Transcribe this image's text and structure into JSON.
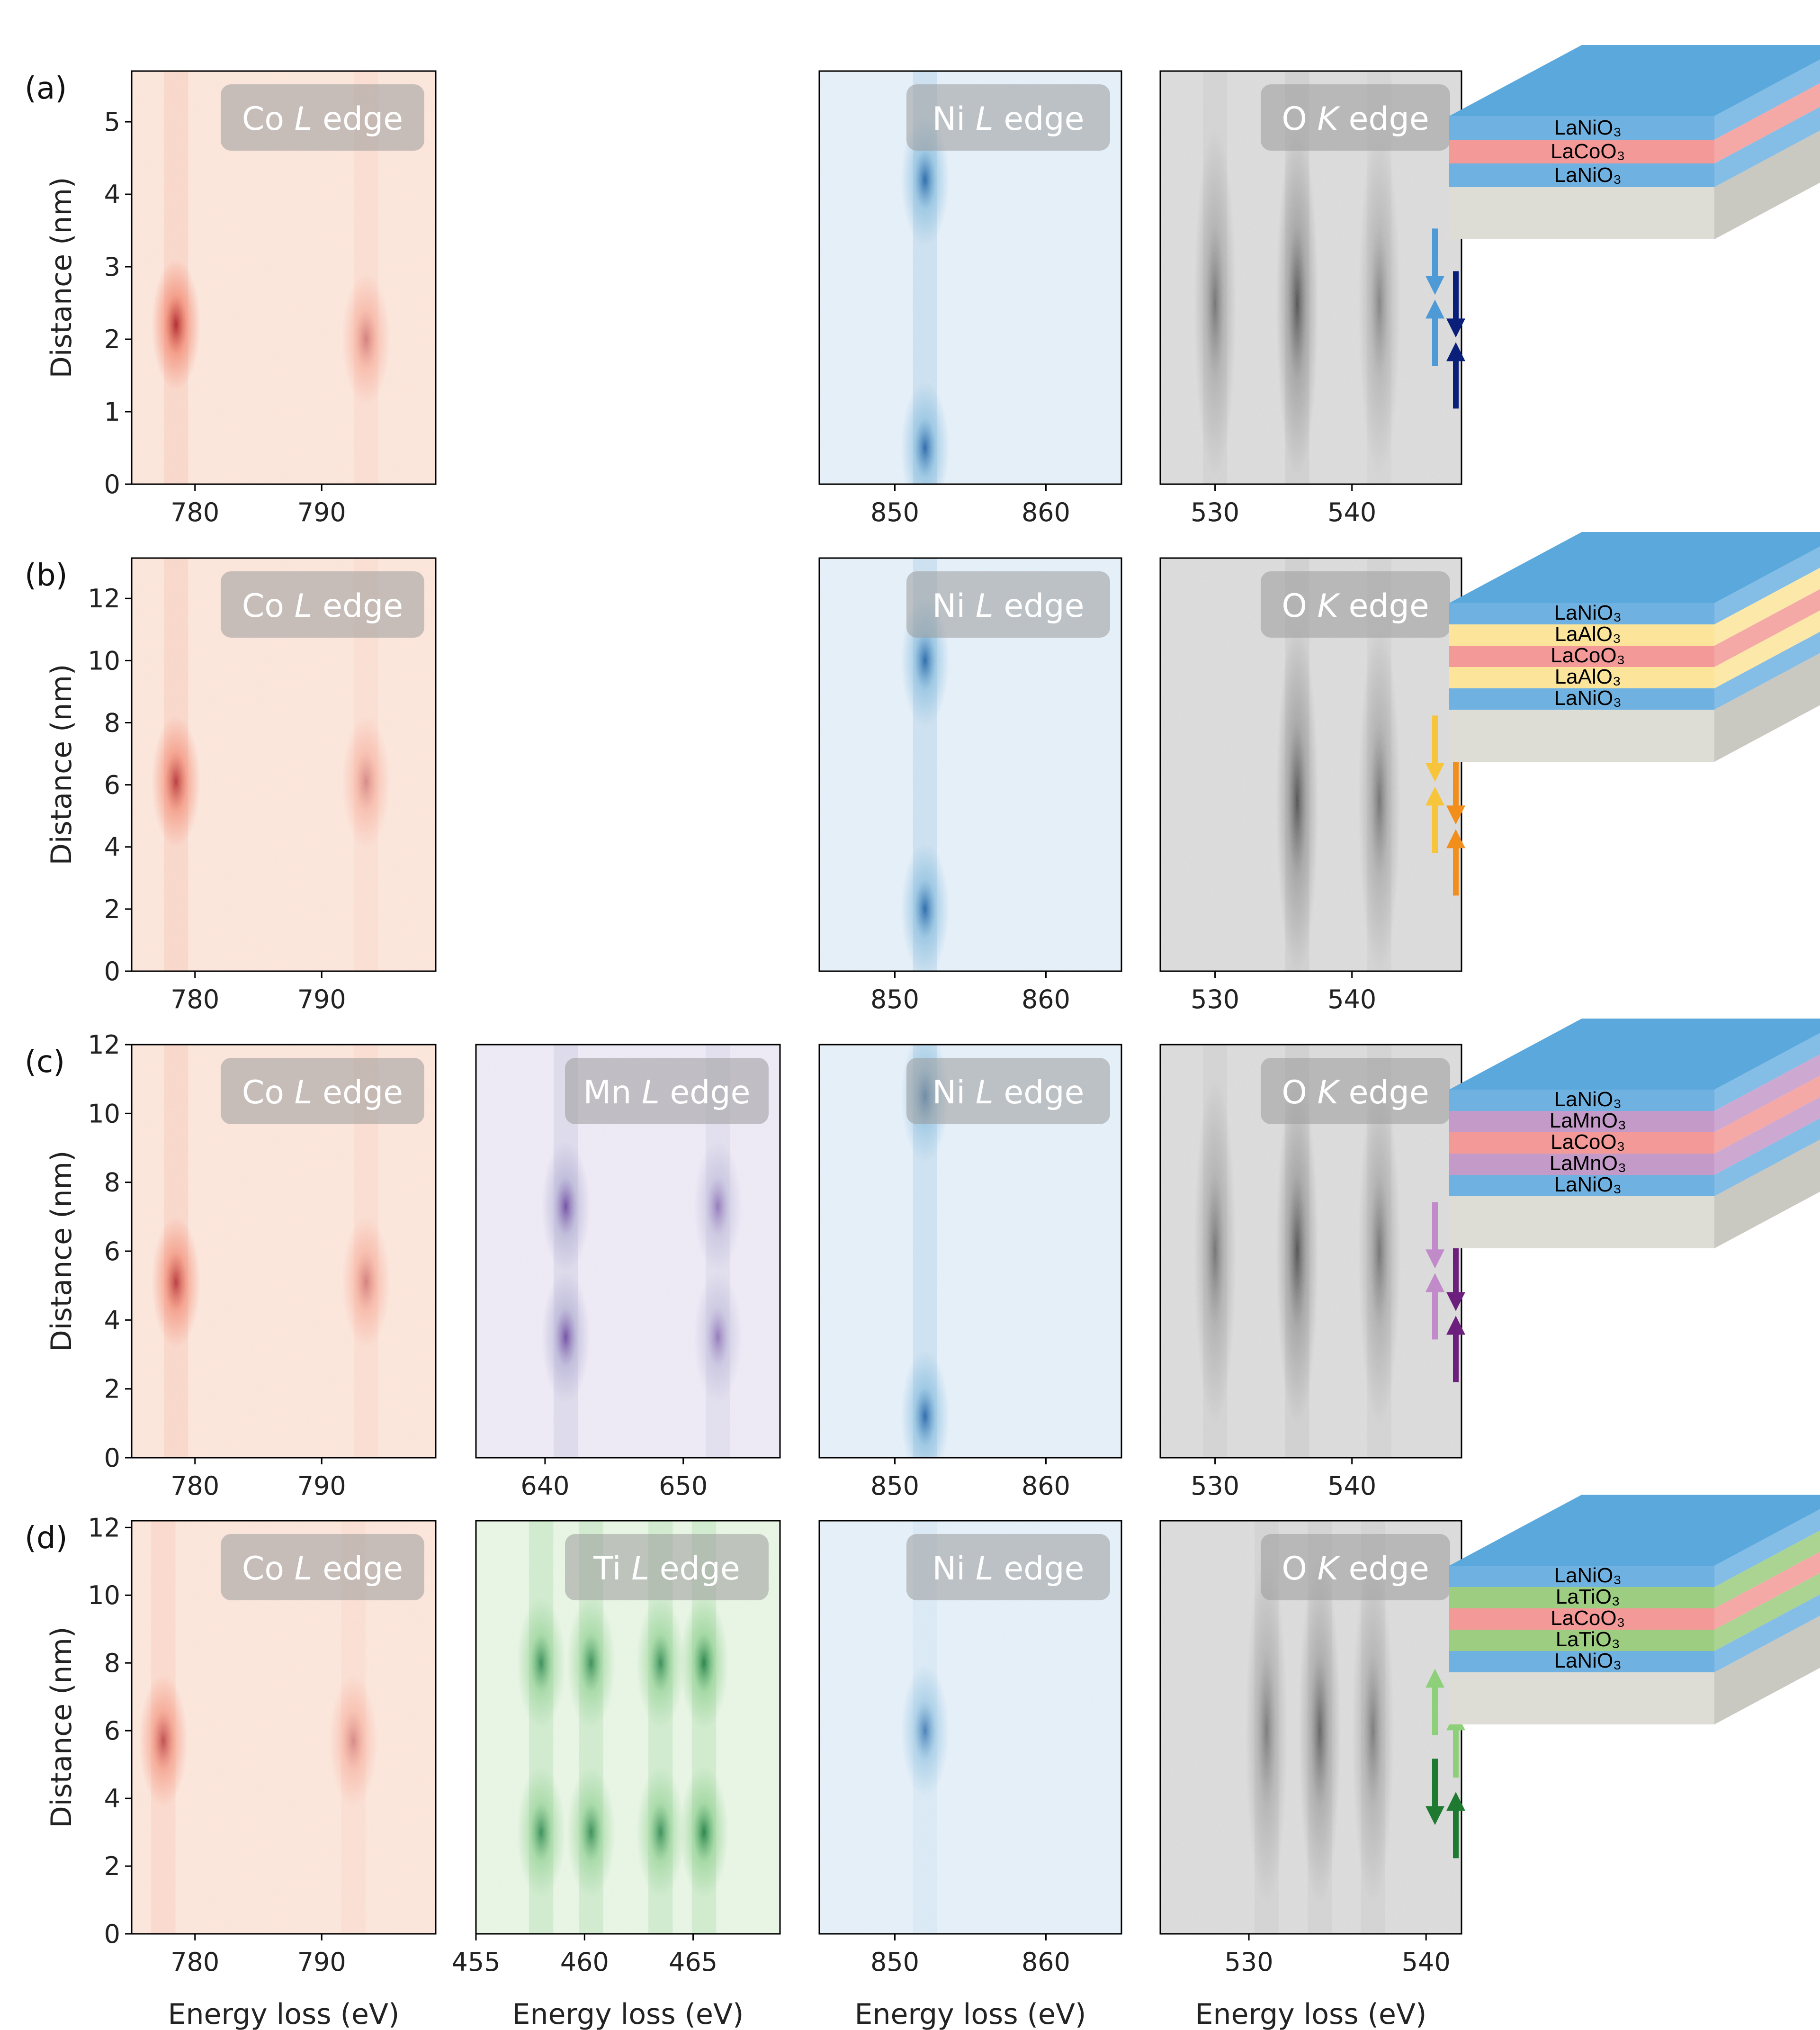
{
  "chart_data": [
    {
      "type": "heatmap",
      "panel": "(a)",
      "ylabel": "Distance (nm)",
      "maps": [
        {
          "edge_element": "Co",
          "edge_shell": "L",
          "edge_word": "edge",
          "xlim": [
            775,
            799
          ],
          "xticks": [
            "780",
            "790"
          ],
          "ylim": [
            0,
            5.7
          ],
          "yticks": [
            "0",
            "1",
            "2",
            "3",
            "4",
            "5"
          ],
          "colormap": "Reds",
          "features": [
            {
              "energy": 778.5,
              "distance": 2.2,
              "intensity": 0.95
            },
            {
              "energy": 793.5,
              "distance": 2.0,
              "intensity": 0.5
            }
          ]
        },
        {
          "edge_element": "Ni",
          "edge_shell": "L",
          "edge_word": "edge",
          "xlim": [
            845,
            865
          ],
          "xticks": [
            "850",
            "860"
          ],
          "ylim": [
            0,
            5.7
          ],
          "colormap": "Blues",
          "features": [
            {
              "energy": 852,
              "distance": 0.5,
              "intensity": 0.9
            },
            {
              "energy": 852,
              "distance": 4.2,
              "intensity": 0.9
            }
          ]
        },
        {
          "edge_element": "O",
          "edge_shell": "K",
          "edge_word": "edge",
          "xlim": [
            526,
            548
          ],
          "xticks": [
            "530",
            "540"
          ],
          "ylim": [
            0,
            5.7
          ],
          "colormap": "Greys",
          "features": [
            {
              "energy": 530,
              "distance": 2.5,
              "intensity": 0.6
            },
            {
              "energy": 536,
              "distance": 2.5,
              "intensity": 0.8
            },
            {
              "energy": 542,
              "distance": 2.5,
              "intensity": 0.5
            }
          ]
        }
      ],
      "stack_layers": [
        "LaNiO₃",
        "LaCoO₃",
        "LaNiO₃"
      ]
    },
    {
      "type": "heatmap",
      "panel": "(b)",
      "ylabel": "Distance (nm)",
      "maps": [
        {
          "edge_element": "Co",
          "edge_shell": "L",
          "edge_word": "edge",
          "xlim": [
            775,
            799
          ],
          "xticks": [
            "780",
            "790"
          ],
          "ylim": [
            0,
            13.3
          ],
          "yticks": [
            "0",
            "2",
            "4",
            "6",
            "8",
            "10",
            "12"
          ],
          "colormap": "Reds",
          "features": [
            {
              "energy": 778.5,
              "distance": 6.1,
              "intensity": 0.85
            },
            {
              "energy": 793.5,
              "distance": 6.1,
              "intensity": 0.45
            }
          ]
        },
        {
          "edge_element": "Ni",
          "edge_shell": "L",
          "edge_word": "edge",
          "xlim": [
            845,
            865
          ],
          "xticks": [
            "850",
            "860"
          ],
          "ylim": [
            0,
            13.3
          ],
          "colormap": "Blues",
          "features": [
            {
              "energy": 852,
              "distance": 2.0,
              "intensity": 0.9
            },
            {
              "energy": 852,
              "distance": 10.0,
              "intensity": 0.9
            }
          ]
        },
        {
          "edge_element": "O",
          "edge_shell": "K",
          "edge_word": "edge",
          "xlim": [
            526,
            548
          ],
          "xticks": [
            "530",
            "540"
          ],
          "ylim": [
            0,
            13.3
          ],
          "colormap": "Greys",
          "features": [
            {
              "energy": 536,
              "distance": 5.5,
              "intensity": 0.8
            },
            {
              "energy": 542,
              "distance": 5.5,
              "intensity": 0.6
            }
          ]
        }
      ],
      "stack_layers": [
        "LaNiO₃",
        "LaAlO₃",
        "LaCoO₃",
        "LaAlO₃",
        "LaNiO₃"
      ]
    },
    {
      "type": "heatmap",
      "panel": "(c)",
      "ylabel": "Distance (nm)",
      "maps": [
        {
          "edge_element": "Co",
          "edge_shell": "L",
          "edge_word": "edge",
          "xlim": [
            775,
            799
          ],
          "xticks": [
            "780",
            "790"
          ],
          "ylim": [
            0,
            12
          ],
          "yticks": [
            "0",
            "2",
            "4",
            "6",
            "8",
            "10",
            "12"
          ],
          "colormap": "Reds",
          "features": [
            {
              "energy": 778.5,
              "distance": 5.1,
              "intensity": 0.85
            },
            {
              "energy": 793.5,
              "distance": 5.1,
              "intensity": 0.5
            }
          ]
        },
        {
          "edge_element": "Mn",
          "edge_shell": "L",
          "edge_word": "edge",
          "xlim": [
            635,
            657
          ],
          "xticks": [
            "640",
            "650"
          ],
          "ylim": [
            0,
            12
          ],
          "colormap": "Purples",
          "features": [
            {
              "energy": 641.5,
              "distance": 7.3,
              "intensity": 0.85
            },
            {
              "energy": 652.5,
              "distance": 7.3,
              "intensity": 0.6
            },
            {
              "energy": 641.5,
              "distance": 3.5,
              "intensity": 0.85
            },
            {
              "energy": 652.5,
              "distance": 3.5,
              "intensity": 0.6
            }
          ]
        },
        {
          "edge_element": "Ni",
          "edge_shell": "L",
          "edge_word": "edge",
          "xlim": [
            845,
            865
          ],
          "xticks": [
            "850",
            "860"
          ],
          "ylim": [
            0,
            12
          ],
          "colormap": "Blues",
          "features": [
            {
              "energy": 852,
              "distance": 1.2,
              "intensity": 0.9
            },
            {
              "energy": 852,
              "distance": 10.5,
              "intensity": 0.8
            }
          ]
        },
        {
          "edge_element": "O",
          "edge_shell": "K",
          "edge_word": "edge",
          "xlim": [
            526,
            548
          ],
          "xticks": [
            "530",
            "540"
          ],
          "ylim": [
            0,
            12
          ],
          "colormap": "Greys",
          "features": [
            {
              "energy": 530,
              "distance": 6,
              "intensity": 0.6
            },
            {
              "energy": 536,
              "distance": 6,
              "intensity": 0.8
            },
            {
              "energy": 542,
              "distance": 6,
              "intensity": 0.6
            }
          ]
        }
      ],
      "stack_layers": [
        "LaNiO₃",
        "LaMnO₃",
        "LaCoO₃",
        "LaMnO₃",
        "LaNiO₃"
      ]
    },
    {
      "type": "heatmap",
      "panel": "(d)",
      "ylabel": "Distance (nm)",
      "xlabel": "Energy loss (eV)",
      "maps": [
        {
          "edge_element": "Co",
          "edge_shell": "L",
          "edge_word": "edge",
          "xlim": [
            775,
            799
          ],
          "xticks": [
            "780",
            "790"
          ],
          "ylim": [
            0,
            12.2
          ],
          "yticks": [
            "0",
            "2",
            "4",
            "6",
            "8",
            "10",
            "12"
          ],
          "colormap": "Reds",
          "features": [
            {
              "energy": 777.5,
              "distance": 5.7,
              "intensity": 0.75
            },
            {
              "energy": 792.5,
              "distance": 5.7,
              "intensity": 0.45
            }
          ]
        },
        {
          "edge_element": "Ti",
          "edge_shell": "L",
          "edge_word": "edge",
          "xlim": [
            455,
            469
          ],
          "xticks": [
            "455",
            "460",
            "465"
          ],
          "ylim": [
            0,
            12.2
          ],
          "colormap": "Greens",
          "features": [
            {
              "energy": 458,
              "distance": 8.0,
              "intensity": 0.8
            },
            {
              "energy": 460.3,
              "distance": 8.0,
              "intensity": 0.8
            },
            {
              "energy": 463.5,
              "distance": 8.0,
              "intensity": 0.8
            },
            {
              "energy": 465.5,
              "distance": 8.0,
              "intensity": 0.9
            },
            {
              "energy": 458,
              "distance": 3.0,
              "intensity": 0.8
            },
            {
              "energy": 460.3,
              "distance": 3.0,
              "intensity": 0.8
            },
            {
              "energy": 463.5,
              "distance": 3.0,
              "intensity": 0.8
            },
            {
              "energy": 465.5,
              "distance": 3.0,
              "intensity": 0.9
            }
          ]
        },
        {
          "edge_element": "Ni",
          "edge_shell": "L",
          "edge_word": "edge",
          "xlim": [
            845,
            865
          ],
          "xticks": [
            "850",
            "860"
          ],
          "ylim": [
            0,
            12.2
          ],
          "colormap": "Blues",
          "features": [
            {
              "energy": 852,
              "distance": 6,
              "intensity": 0.75
            }
          ]
        },
        {
          "edge_element": "O",
          "edge_shell": "K",
          "edge_word": "edge",
          "xlim": [
            525,
            542
          ],
          "xticks": [
            "530",
            "540"
          ],
          "ylim": [
            0,
            12.2
          ],
          "colormap": "Greys",
          "features": [
            {
              "energy": 531,
              "distance": 6,
              "intensity": 0.55
            },
            {
              "energy": 534,
              "distance": 6,
              "intensity": 0.7
            },
            {
              "energy": 537,
              "distance": 6,
              "intensity": 0.55
            }
          ]
        }
      ],
      "stack_layers": [
        "LaNiO₃",
        "LaTiO₃",
        "LaCoO₃",
        "LaTiO₃",
        "LaNiO₃"
      ]
    }
  ],
  "colors": {
    "LaNiO₃": "#6fb2e2",
    "LaCoO₃": "#f39a98",
    "LaAlO₃": "#fce49a",
    "LaMnO₃": "#c49ac9",
    "LaTiO₃": "#9ccd80",
    "substrate": "#dddcd5",
    "stack_top": "#5aa8dc",
    "Co_hi": "#a50f15",
    "Ni_hi": "#08519c",
    "Mn_hi": "#54278f",
    "Ti_hi": "#006d2c",
    "O_hi": "#252525",
    "arrow_light_blue": "#4e9ad6",
    "arrow_dark_blue": "#0a1f7a",
    "arrow_yellow": "#f7c53b",
    "arrow_orange": "#f28e1c",
    "arrow_light_purple": "#c08bc8",
    "arrow_dark_purple": "#6d1f7e",
    "arrow_light_green": "#8ed07a",
    "arrow_dark_green": "#1e7a31"
  },
  "spin_arrows": [
    [
      {
        "dir": "down",
        "color": "arrow_light_blue"
      },
      {
        "dir": "up",
        "color": "arrow_light_blue"
      },
      {
        "dir": "down",
        "color": "arrow_dark_blue"
      },
      {
        "dir": "up",
        "color": "arrow_dark_blue"
      }
    ],
    [
      {
        "dir": "down",
        "color": "arrow_yellow"
      },
      {
        "dir": "up",
        "color": "arrow_yellow"
      },
      {
        "dir": "down",
        "color": "arrow_orange"
      },
      {
        "dir": "up",
        "color": "arrow_orange"
      }
    ],
    [
      {
        "dir": "down",
        "color": "arrow_light_purple"
      },
      {
        "dir": "up",
        "color": "arrow_light_purple"
      },
      {
        "dir": "down",
        "color": "arrow_dark_purple"
      },
      {
        "dir": "up",
        "color": "arrow_dark_purple"
      }
    ],
    [
      {
        "dir": "up",
        "color": "arrow_light_green"
      },
      {
        "dir": "down",
        "color": "arrow_dark_green"
      },
      {
        "dir": "up",
        "color": "arrow_light_green"
      },
      {
        "dir": "up",
        "color": "arrow_dark_green"
      }
    ]
  ]
}
